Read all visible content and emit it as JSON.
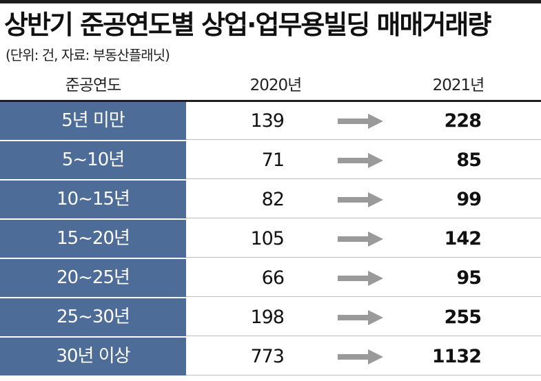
{
  "title": "상반기 준공연도별 상업·업무용빌딩 매매거래량",
  "subtitle": "(단위: 건, 자료: 부동산플래닛)",
  "headers": {
    "year_col": "준공연도",
    "col_2020": "2020년",
    "col_2021": "2021년"
  },
  "colors": {
    "label_bg": "#4d6c98",
    "arrow": "#9a9a9a",
    "rule": "#1e1e1e"
  },
  "rows": [
    {
      "label": "5년 미만",
      "v2020": "139",
      "v2021": "228"
    },
    {
      "label": "5~10년",
      "v2020": "71",
      "v2021": "85"
    },
    {
      "label": "10~15년",
      "v2020": "82",
      "v2021": "99"
    },
    {
      "label": "15~20년",
      "v2020": "105",
      "v2021": "142"
    },
    {
      "label": "20~25년",
      "v2020": "66",
      "v2021": "95"
    },
    {
      "label": "25~30년",
      "v2020": "198",
      "v2021": "255"
    },
    {
      "label": "30년 이상",
      "v2020": "773",
      "v2021": "1132"
    }
  ]
}
